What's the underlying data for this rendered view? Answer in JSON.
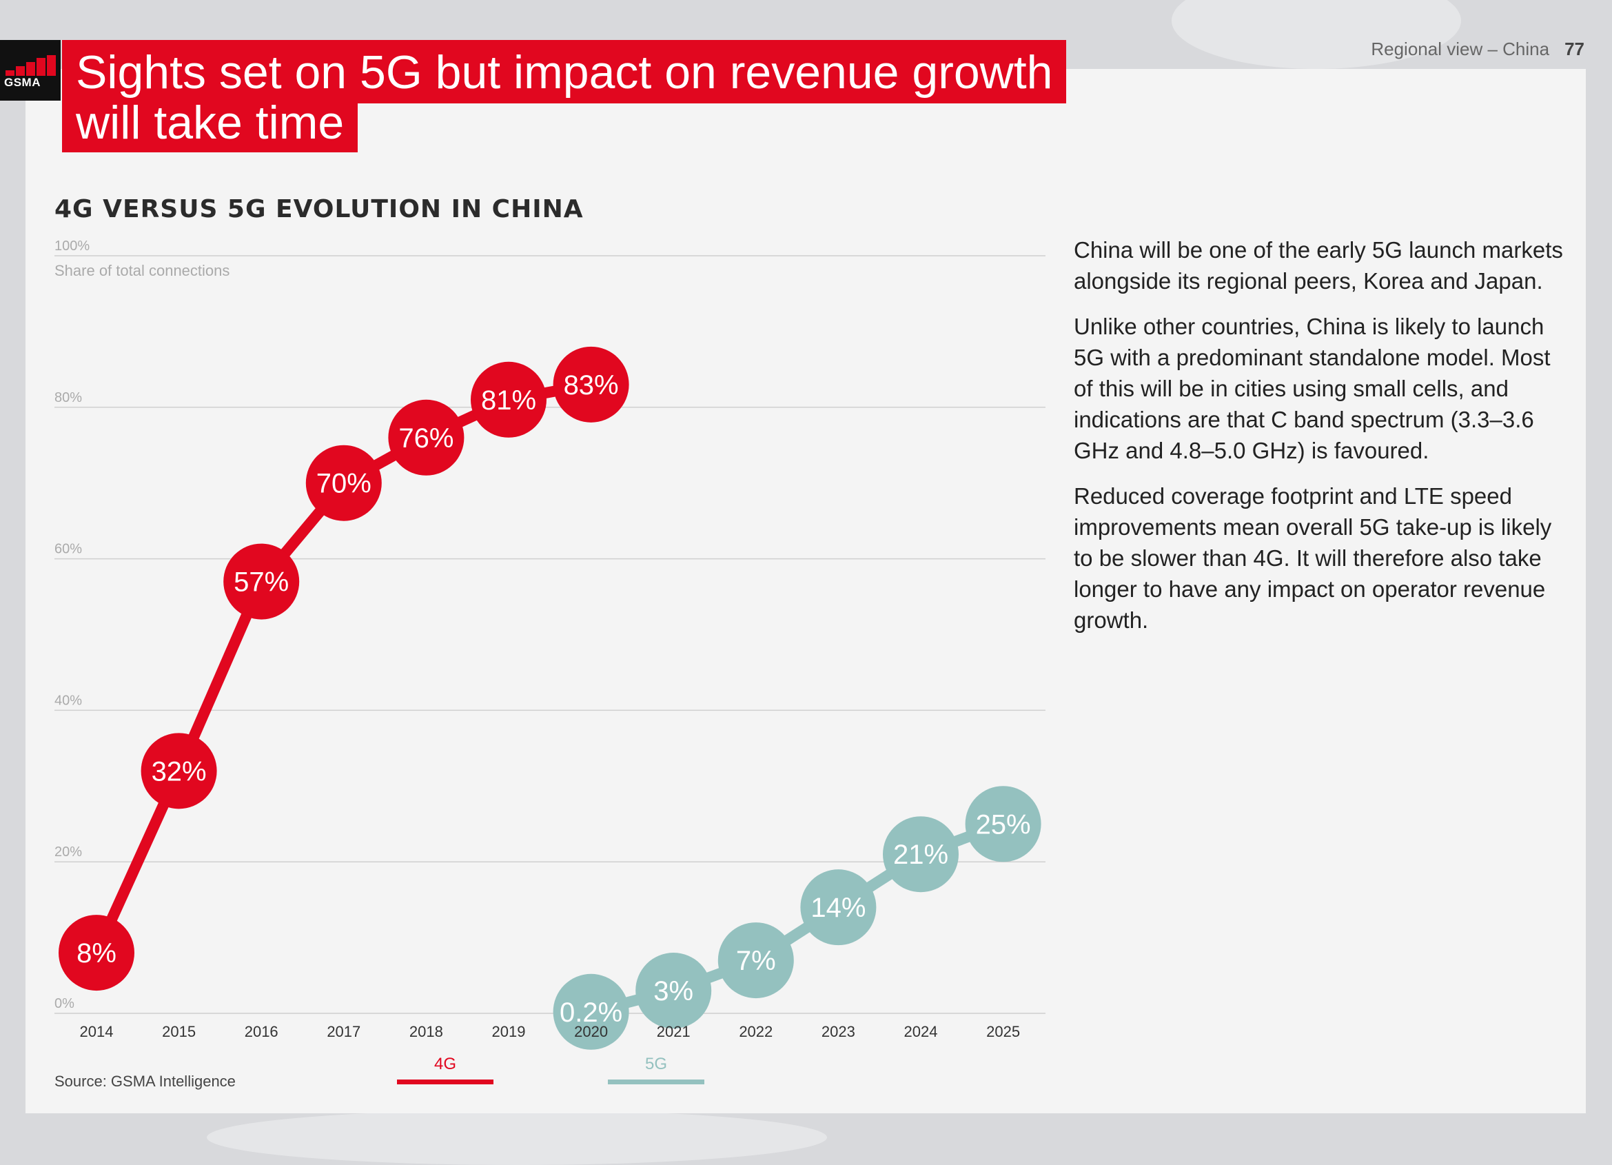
{
  "header": {
    "logo_text": "GSMA",
    "title_line1": "Sights set on 5G but impact on revenue growth",
    "title_line2": "will take time",
    "section": "Regional view – China",
    "page_number": "77"
  },
  "chart_data": {
    "type": "line",
    "title": "4G VERSUS 5G EVOLUTION IN CHINA",
    "ylabel": "Share of total connections",
    "xlabel": "",
    "ylim": [
      0,
      100
    ],
    "yticks": [
      "0%",
      "20%",
      "40%",
      "60%",
      "80%",
      "100%"
    ],
    "categories": [
      "2014",
      "2015",
      "2016",
      "2017",
      "2018",
      "2019",
      "2020",
      "2021",
      "2022",
      "2023",
      "2024",
      "2025"
    ],
    "series": [
      {
        "name": "4G",
        "color": "#e1071f",
        "x": [
          "2014",
          "2015",
          "2016",
          "2017",
          "2018",
          "2019",
          "2020"
        ],
        "values": [
          8,
          32,
          57,
          70,
          76,
          81,
          83
        ],
        "labels": [
          "8%",
          "32%",
          "57%",
          "70%",
          "76%",
          "81%",
          "83%"
        ]
      },
      {
        "name": "5G",
        "color": "#94c1bf",
        "x": [
          "2020",
          "2021",
          "2022",
          "2023",
          "2024",
          "2025"
        ],
        "values": [
          0.2,
          3,
          7,
          14,
          21,
          25
        ],
        "labels": [
          "0.2%",
          "3%",
          "7%",
          "14%",
          "21%",
          "25%"
        ]
      }
    ],
    "legend": "bottom",
    "source": "Source: GSMA Intelligence"
  },
  "body": {
    "paragraphs": [
      "China will be one of the early 5G launch markets alongside its regional peers, Korea and Japan.",
      "Unlike other countries, China is likely to launch 5G with a predominant standalone model. Most of this will be in cities using small cells, and indications are that C band spectrum (3.3–3.6 GHz and 4.8–5.0 GHz) is favoured.",
      "Reduced coverage footprint and LTE speed improvements mean overall 5G take-up is likely to be slower than 4G. It will therefore also take longer to have any impact on operator revenue growth."
    ]
  }
}
